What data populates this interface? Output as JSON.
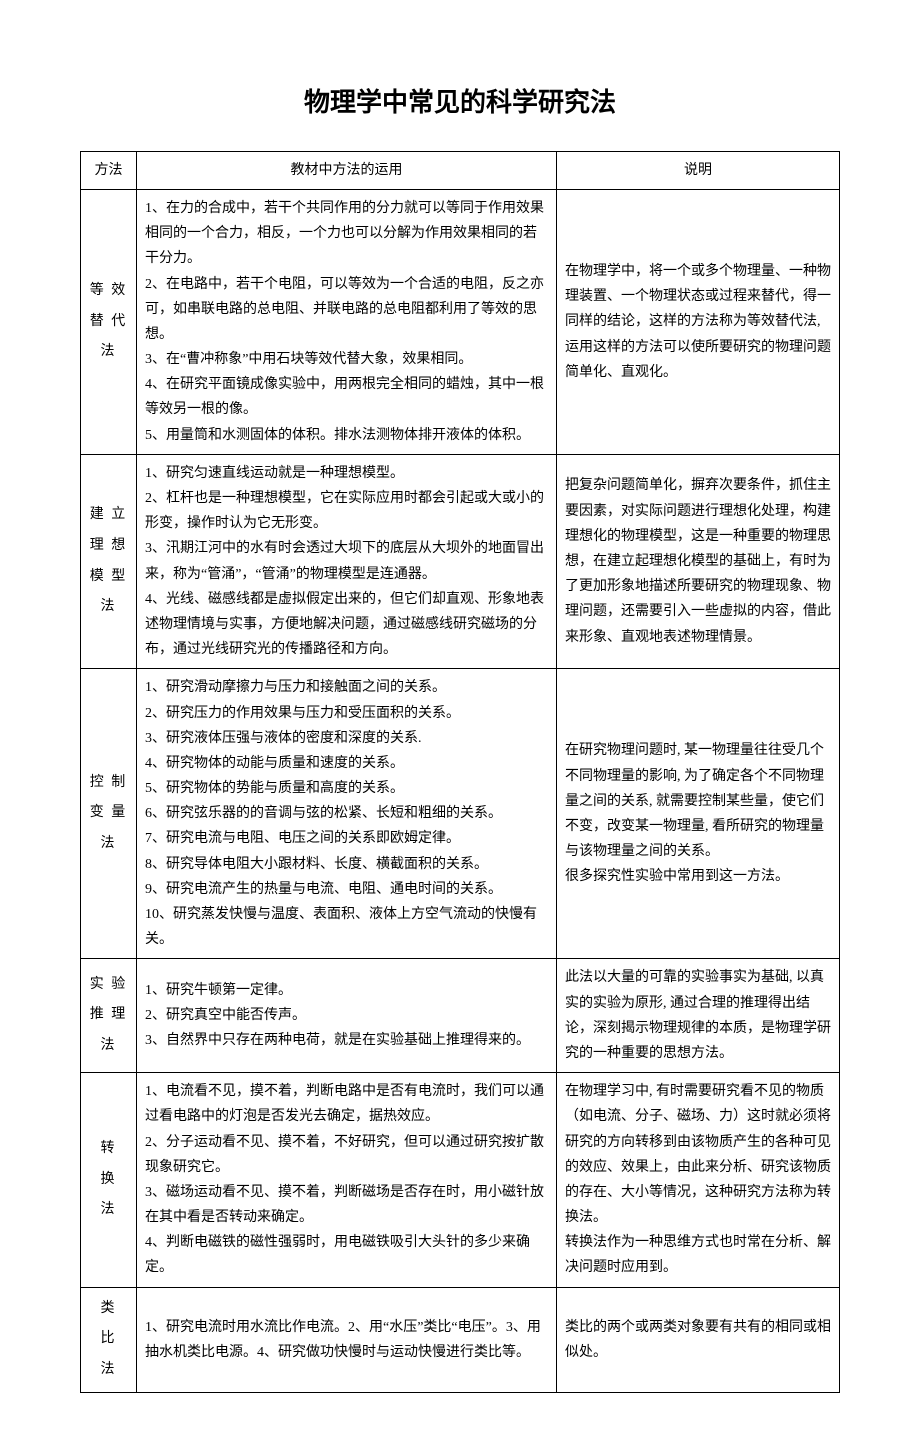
{
  "title": "物理学中常见的科学研究法",
  "headers": {
    "method": "方法",
    "usage": "教材中方法的运用",
    "desc": "说明"
  },
  "rows": [
    {
      "method": "等效替代法",
      "usage": "1、在力的合成中，若干个共同作用的分力就可以等同于作用效果相同的一个合力，相反，一个力也可以分解为作用效果相同的若干分力。\n2、在电路中，若干个电阻，可以等效为一个合适的电阻，反之亦可，如串联电路的总电阻、并联电路的总电阻都利用了等效的思想。\n3、在“曹冲称象”中用石块等效代替大象，效果相同。\n4、在研究平面镜成像实验中，用两根完全相同的蜡烛，其中一根等效另一根的像。\n5、用量筒和水测固体的体积。排水法测物体排开液体的体积。",
      "desc": "在物理学中，将一个或多个物理量、一种物理装置、一个物理状态或过程来替代，得一同样的结论，这样的方法称为等效替代法, 运用这样的方法可以使所要研究的物理问题简单化、直观化。"
    },
    {
      "method": "建立理想模型法",
      "usage": "1、研究匀速直线运动就是一种理想模型。\n2、杠杆也是一种理想模型，它在实际应用时都会引起或大或小的形变，操作时认为它无形变。\n3、汛期江河中的水有时会透过大坝下的底层从大坝外的地面冒出来，称为“管涌”，“管涌”的物理模型是连通器。\n4、光线、磁感线都是虚拟假定出来的，但它们却直观、形象地表述物理情境与实事，方便地解决问题，通过磁感线研究磁场的分布，通过光线研究光的传播路径和方向。",
      "desc": "把复杂问题简单化，摒弃次要条件，抓住主要因素，对实际问题进行理想化处理，构建理想化的物理模型，这是一种重要的物理思想，在建立起理想化模型的基础上，有时为了更加形象地描述所要研究的物理现象、物理问题，还需要引入一些虚拟的内容，借此来形象、直观地表述物理情景。"
    },
    {
      "method": "控制变量法",
      "usage": "1、研究滑动摩擦力与压力和接触面之间的关系。\n2、研究压力的作用效果与压力和受压面积的关系。\n3、研究液体压强与液体的密度和深度的关系.\n4、研究物体的动能与质量和速度的关系。\n5、研究物体的势能与质量和高度的关系。\n6、研究弦乐器的的音调与弦的松紧、长短和粗细的关系。\n7、研究电流与电阻、电压之间的关系即欧姆定律。\n8、研究导体电阻大小跟材料、长度、横截面积的关系。\n9、研究电流产生的热量与电流、电阻、通电时间的关系。\n10、研究蒸发快慢与温度、表面积、液体上方空气流动的快慢有关。",
      "desc": "在研究物理问题时, 某一物理量往往受几个不同物理量的影响, 为了确定各个不同物理量之间的关系, 就需要控制某些量，使它们不变，改变某一物理量, 看所研究的物理量与该物理量之间的关系。\n很多探究性实验中常用到这一方法。"
    },
    {
      "method": "实验推理法",
      "usage": "1、研究牛顿第一定律。\n2、研究真空中能否传声。\n3、自然界中只存在两种电荷，就是在实验基础上推理得来的。",
      "desc": "此法以大量的可靠的实验事实为基础, 以真实的实验为原形, 通过合理的推理得出结论，深刻揭示物理规律的本质，是物理学研究的一种重要的思想方法。"
    },
    {
      "method": "转换法",
      "usage": "1、电流看不见，摸不着，判断电路中是否有电流时，我们可以通过看电路中的灯泡是否发光去确定，据热效应。\n2、分子运动看不见、摸不着，不好研究，但可以通过研究按扩散现象研究它。\n3、磁场运动看不见、摸不着，判断磁场是否存在时，用小磁针放在其中看是否转动来确定。\n4、判断电磁铁的磁性强弱时，用电磁铁吸引大头针的多少来确定。",
      "desc": "在物理学习中, 有时需要研究看不见的物质（如电流、分子、磁场、力）这时就必须将研究的方向转移到由该物质产生的各种可见的效应、效果上，由此来分析、研究该物质的存在、大小等情况，这种研究方法称为转换法。\n转换法作为一种思维方式也时常在分析、解决问题时应用到。"
    },
    {
      "method": "类比法",
      "usage": "1、研究电流时用水流比作电流。2、用“水压”类比“电压”。3、用抽水机类比电源。4、研究做功快慢时与运动快慢进行类比等。",
      "desc": "类比的两个或两类对象要有共有的相同或相似处。"
    }
  ]
}
